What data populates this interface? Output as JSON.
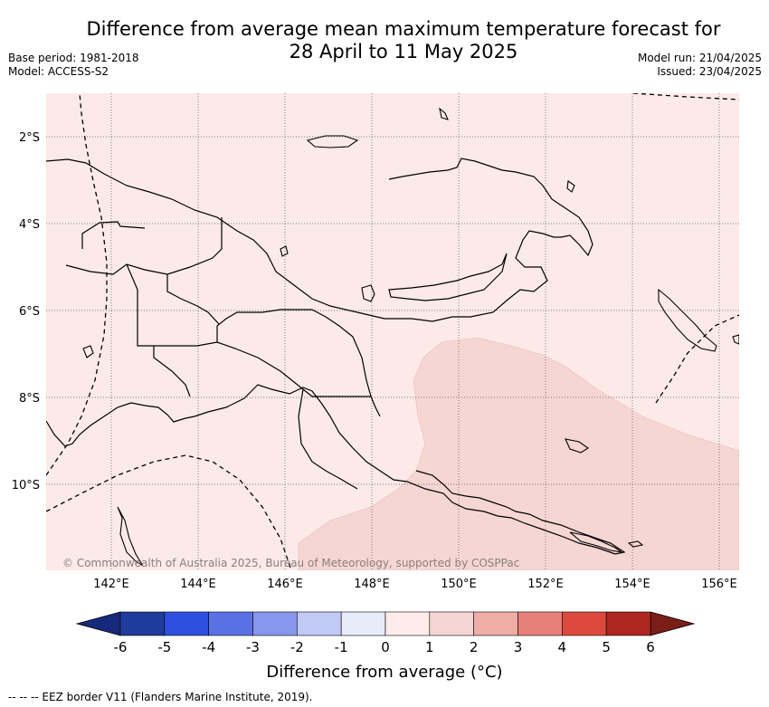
{
  "title": {
    "line1": "Difference from average mean maximum temperature forecast for",
    "line2": "28 April to 11 May 2025"
  },
  "meta_left": {
    "base_period": "Base period: 1981-2018",
    "model": "Model: ACCESS-S2"
  },
  "meta_right": {
    "model_run": "Model run: 21/04/2025",
    "issued": "Issued: 23/04/2025"
  },
  "map": {
    "lat_labels": [
      "2°S",
      "4°S",
      "6°S",
      "8°S",
      "10°S"
    ],
    "lon_labels": [
      "142°E",
      "144°E",
      "146°E",
      "148°E",
      "150°E",
      "152°E",
      "154°E",
      "156°E"
    ],
    "copyright": "© Commonwealth of Australia 2025, Bureau of Meteorology, supported by COSPPac",
    "colors": {
      "background_anomaly": "#fbeae8",
      "warm_anomaly": "#f6d6d2"
    }
  },
  "colorbar": {
    "ticks": [
      "-6",
      "-5",
      "-4",
      "-3",
      "-2",
      "-1",
      "0",
      "1",
      "2",
      "3",
      "4",
      "5",
      "6"
    ],
    "colors": [
      "#1f3c9c",
      "#2f4fe0",
      "#5a71e6",
      "#8797ec",
      "#c1c9f5",
      "#e8ebfa",
      "#fdecea",
      "#f6d6d2",
      "#f0aca6",
      "#e8807a",
      "#dc4a3d",
      "#ae2620"
    ],
    "under_color": "#17297a",
    "over_color": "#7a1e17",
    "label": "Difference from average (°C)"
  },
  "legend_note": "-- -- -- EEZ border V11 (Flanders Marine Institute, 2019)."
}
